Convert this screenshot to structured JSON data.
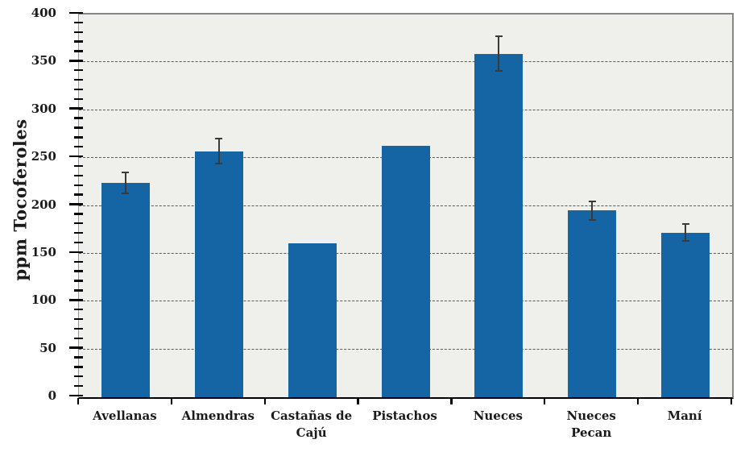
{
  "chart_data": {
    "type": "bar",
    "title": "",
    "xlabel": "",
    "ylabel": "ppm Tocoferoles",
    "ylim": [
      0,
      400
    ],
    "yticks": [
      0,
      50,
      100,
      150,
      200,
      250,
      300,
      350,
      400
    ],
    "y_minor_tick_step": 10,
    "grid": "horizontal dashed, at major ticks 50-350",
    "legend_position": "none",
    "categories": [
      "Avellanas",
      "Almendras",
      "Castañas de Cajú",
      "Pistachos",
      "Nueces",
      "Nueces Pecan",
      "Maní"
    ],
    "tick_label_lines": [
      [
        "Avellanas"
      ],
      [
        "Almendras"
      ],
      [
        "Castañas de",
        "Cajú"
      ],
      [
        "Pistachos"
      ],
      [
        "Nueces"
      ],
      [
        "Nueces",
        "Pecan"
      ],
      [
        "Maní"
      ]
    ],
    "series": [
      {
        "name": "ppm Tocoferoles",
        "values": [
          224,
          257,
          161,
          263,
          359,
          195,
          172
        ],
        "error_bars": [
          11,
          13,
          0,
          0,
          18,
          10,
          9
        ]
      }
    ],
    "colors": {
      "bar": "#1565a5",
      "error_bar": "#3a3a3a",
      "plot_background": "#efefec",
      "gridline": "#5a5a5a",
      "axis_baseline": "#000000",
      "spine": "#878787",
      "text": "#1a1a1a",
      "figure_background": "#ffffff"
    }
  }
}
